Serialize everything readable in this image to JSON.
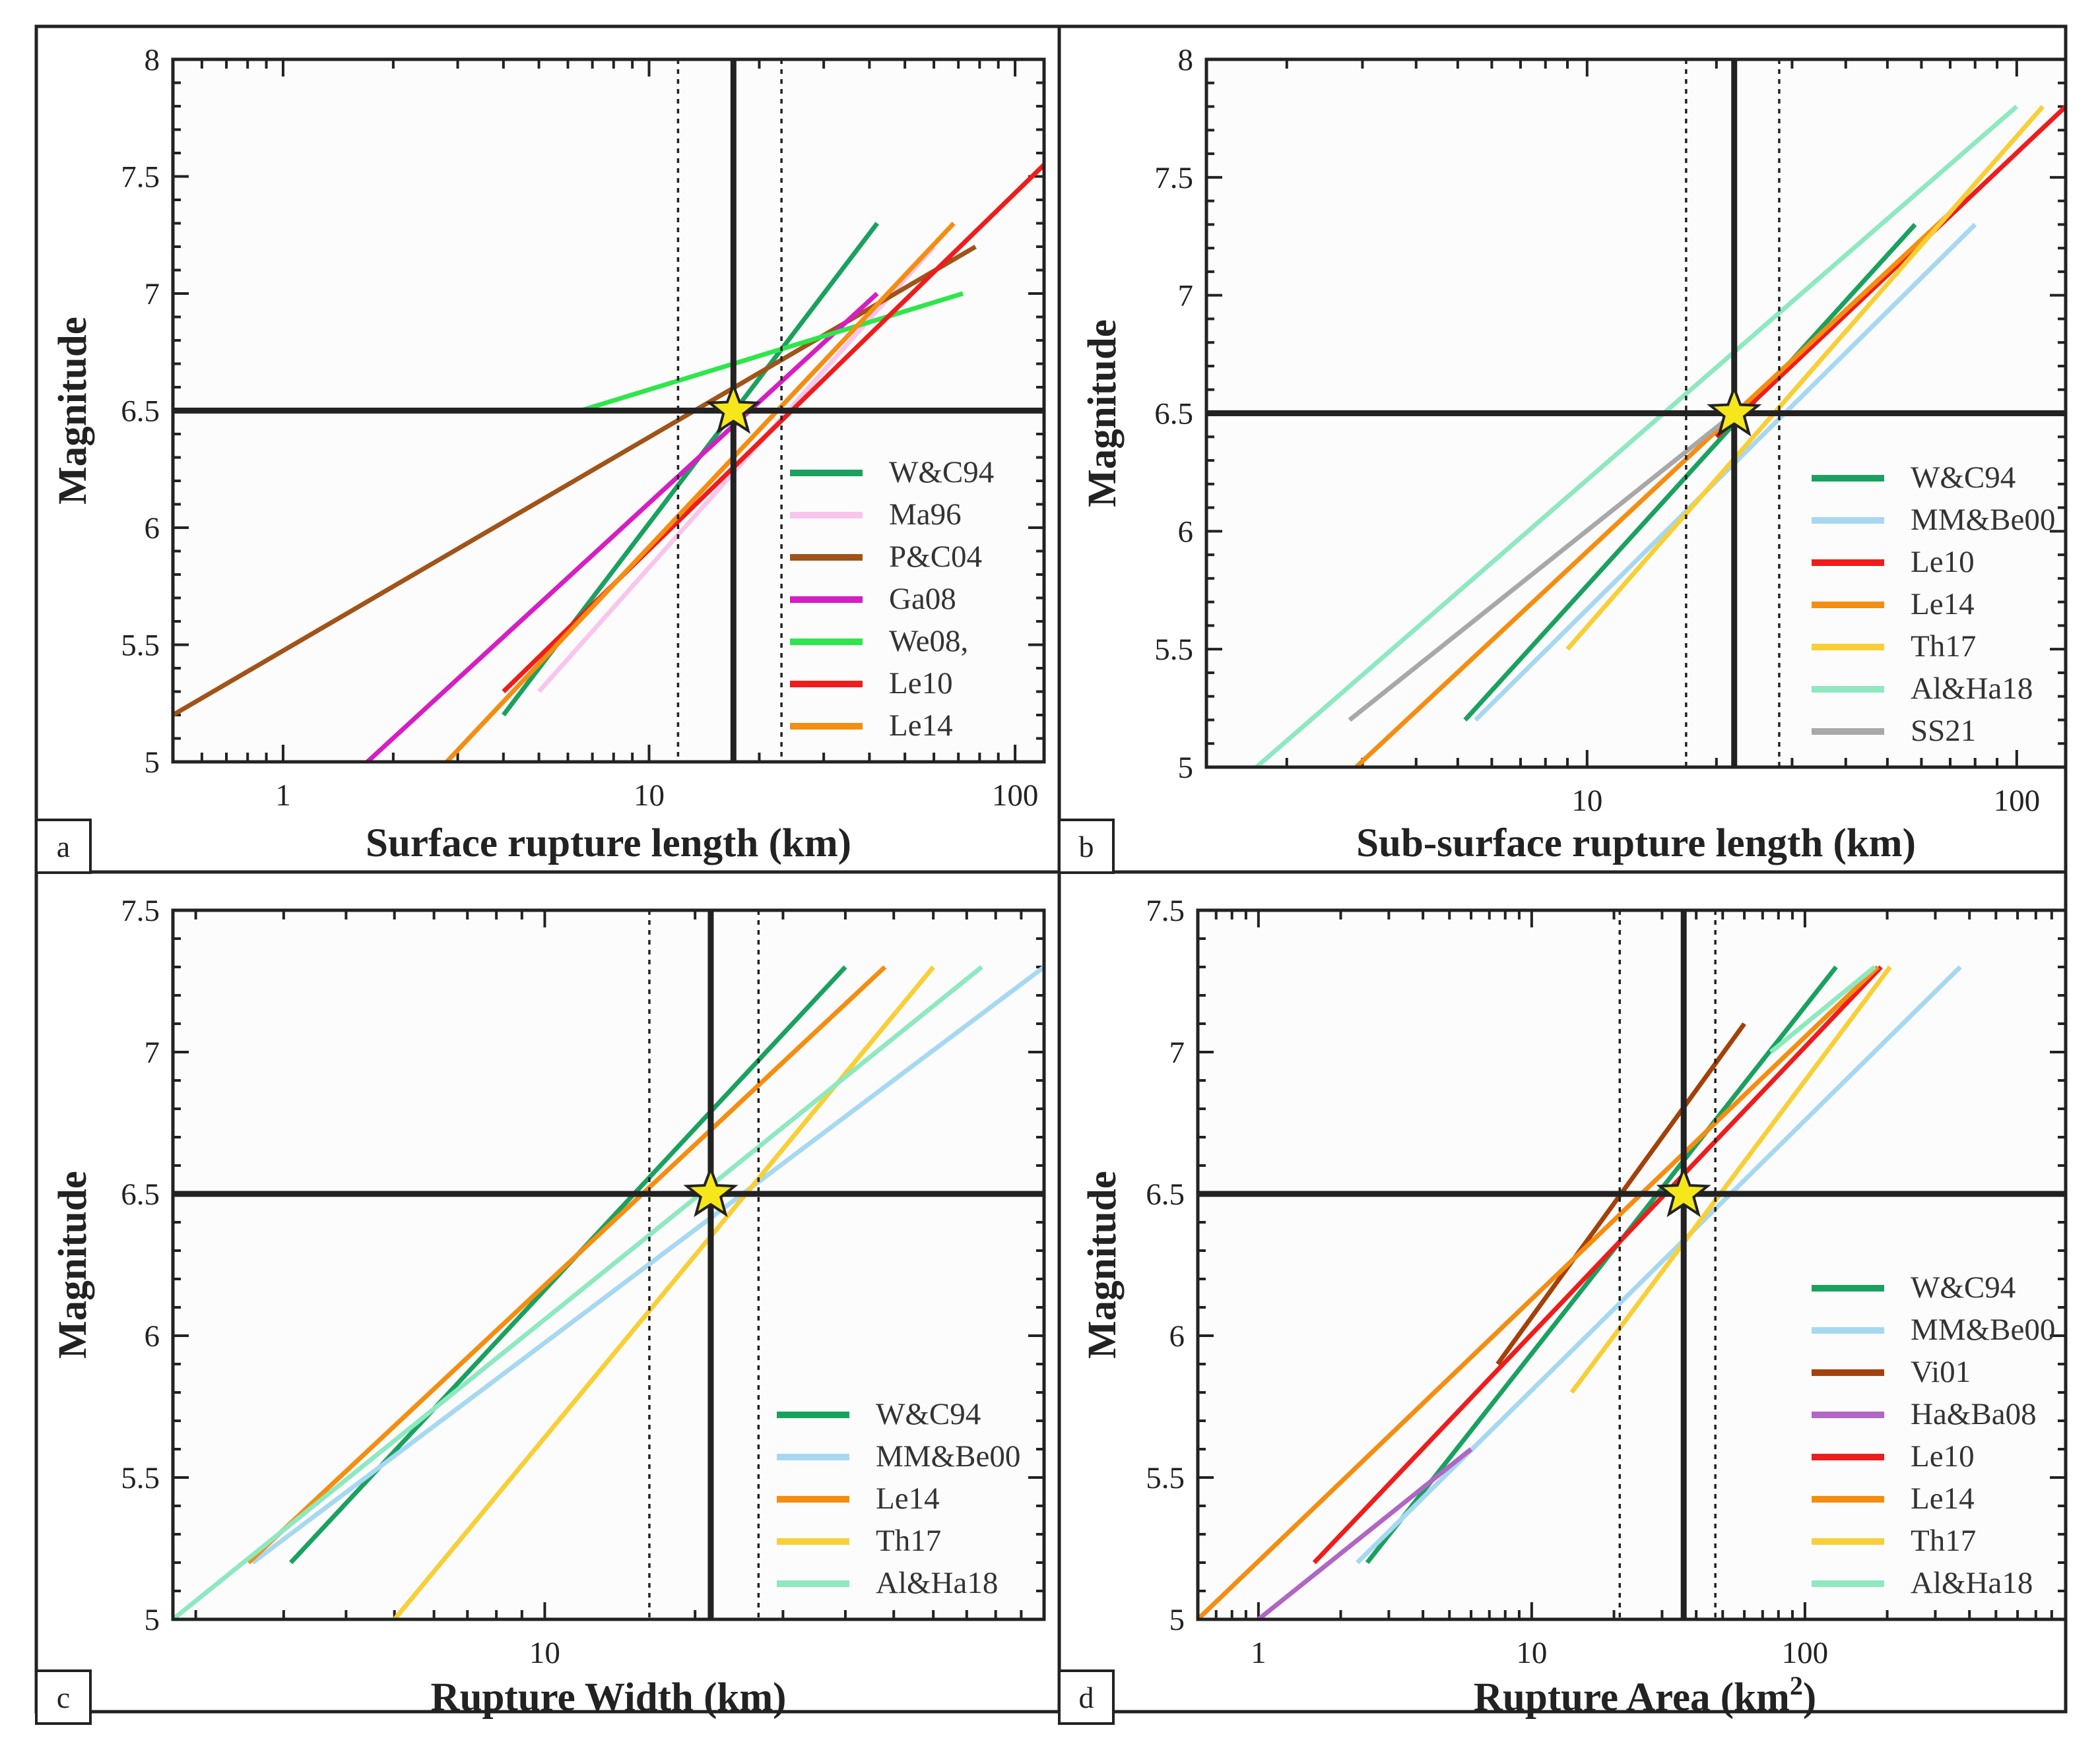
{
  "figure": {
    "star_color": "#f5e71a",
    "line_color": "#222222",
    "ref_lines": {
      "magnitude": 6.5
    }
  },
  "chart_data": [
    {
      "panel": "a",
      "type": "line",
      "xscale": "log",
      "xlabel": "Surface rupture length (km)",
      "ylabel": "Magnitude",
      "xlim": [
        0.5,
        120
      ],
      "ylim": [
        5,
        8
      ],
      "xticks": [
        {
          "v": 1,
          "label": "1"
        },
        {
          "v": 10,
          "label": "10"
        },
        {
          "v": 100,
          "label": "100"
        }
      ],
      "yticks": [
        {
          "v": 5,
          "label": "5"
        },
        {
          "v": 5.5,
          "label": "5.5"
        },
        {
          "v": 6,
          "label": "6"
        },
        {
          "v": 6.5,
          "label": "6.5"
        },
        {
          "v": 7,
          "label": "7"
        },
        {
          "v": 7.5,
          "label": "7.5"
        },
        {
          "v": 8,
          "label": "8"
        }
      ],
      "vline": 17,
      "vline_dotted": [
        12,
        23
      ],
      "star": [
        17,
        6.5
      ],
      "legend_position": "bottom-right",
      "series": [
        {
          "name": "W&C94",
          "color": "#1aa160",
          "x": [
            4,
            42
          ],
          "y": [
            5.2,
            7.3
          ]
        },
        {
          "name": "Ma96",
          "color": "#f8c6ec",
          "x": [
            5,
            60
          ],
          "y": [
            5.3,
            7.2
          ]
        },
        {
          "name": "P&C04",
          "color": "#a05418",
          "x": [
            0.5,
            78
          ],
          "y": [
            5.2,
            7.2
          ]
        },
        {
          "name": "Ga08",
          "color": "#d61ec3",
          "x": [
            1.7,
            42
          ],
          "y": [
            5,
            7
          ]
        },
        {
          "name": "We08,",
          "color": "#2ee64b",
          "x": [
            6.5,
            72
          ],
          "y": [
            6.5,
            7
          ]
        },
        {
          "name": "Le10",
          "color": "#ef1c1c",
          "x": [
            4,
            120
          ],
          "y": [
            5.3,
            7.55
          ]
        },
        {
          "name": "Le14",
          "color": "#f58d10",
          "x": [
            2.8,
            68
          ],
          "y": [
            5,
            7.3
          ]
        }
      ]
    },
    {
      "panel": "b",
      "type": "line",
      "xscale": "log",
      "xlabel": "Sub-surface rupture length (km)",
      "ylabel": "Magnitude",
      "xlim": [
        1.3,
        130
      ],
      "ylim": [
        5,
        8
      ],
      "xticks": [
        {
          "v": 10,
          "label": "10"
        },
        {
          "v": 100,
          "label": "100"
        }
      ],
      "yticks": [
        {
          "v": 5,
          "label": "5"
        },
        {
          "v": 5.5,
          "label": "5.5"
        },
        {
          "v": 6,
          "label": "6"
        },
        {
          "v": 6.5,
          "label": "6.5"
        },
        {
          "v": 7,
          "label": "7"
        },
        {
          "v": 7.5,
          "label": "7.5"
        },
        {
          "v": 8,
          "label": "8"
        }
      ],
      "vline": 22,
      "vline_dotted": [
        17,
        28
      ],
      "star": [
        22,
        6.5
      ],
      "legend_position": "bottom-right",
      "series": [
        {
          "name": "W&C94",
          "color": "#1aa160",
          "x": [
            5.2,
            58
          ],
          "y": [
            5.2,
            7.3
          ]
        },
        {
          "name": "MM&Be00",
          "color": "#a7d8f2",
          "x": [
            5.5,
            80
          ],
          "y": [
            5.2,
            7.3
          ]
        },
        {
          "name": "Le10",
          "color": "#ef1c1c",
          "x": [
            20,
            130
          ],
          "y": [
            6.4,
            7.8
          ]
        },
        {
          "name": "Le14",
          "color": "#f58d10",
          "x": [
            2.9,
            70
          ],
          "y": [
            5,
            7.35
          ]
        },
        {
          "name": "Th17",
          "color": "#f8cf36",
          "x": [
            9,
            115
          ],
          "y": [
            5.5,
            7.8
          ]
        },
        {
          "name": "Al&Ha18",
          "color": "#8ee8c0",
          "x": [
            1.7,
            100
          ],
          "y": [
            5,
            7.8
          ]
        },
        {
          "name": "SS21",
          "color": "#a8a8a8",
          "x": [
            2.8,
            22
          ],
          "y": [
            5.2,
            6.5
          ]
        }
      ]
    },
    {
      "panel": "c",
      "type": "line",
      "xscale": "log",
      "xlabel": "Rupture Width (km)",
      "ylabel": "Magnitude",
      "xlim": [
        1.8,
        100
      ],
      "ylim": [
        5,
        7.5
      ],
      "xticks": [
        {
          "v": 10,
          "label": "10"
        }
      ],
      "yticks": [
        {
          "v": 5,
          "label": "5"
        },
        {
          "v": 5.5,
          "label": "5.5"
        },
        {
          "v": 6,
          "label": "6"
        },
        {
          "v": 6.5,
          "label": "6.5"
        },
        {
          "v": 7,
          "label": "7"
        },
        {
          "v": 7.5,
          "label": "7.5"
        }
      ],
      "vline": 21.5,
      "vline_dotted": [
        16.2,
        26.8
      ],
      "star": [
        21.5,
        6.5
      ],
      "legend_position": "bottom-right",
      "series": [
        {
          "name": "W&C94",
          "color": "#1aa160",
          "x": [
            3.1,
            40
          ],
          "y": [
            5.2,
            7.3
          ]
        },
        {
          "name": "MM&Be00",
          "color": "#a7d8f2",
          "x": [
            2.6,
            100
          ],
          "y": [
            5.2,
            7.3
          ]
        },
        {
          "name": "Le14",
          "color": "#f58d10",
          "x": [
            2.55,
            48
          ],
          "y": [
            5.2,
            7.3
          ]
        },
        {
          "name": "Th17",
          "color": "#f8cf36",
          "x": [
            5,
            60
          ],
          "y": [
            5,
            7.3
          ]
        },
        {
          "name": "Al&Ha18",
          "color": "#8ee8c0",
          "x": [
            1.8,
            75
          ],
          "y": [
            5,
            7.3
          ]
        }
      ]
    },
    {
      "panel": "d",
      "type": "line",
      "xscale": "log",
      "xlabel": "Rupture Area (km",
      "xlabel_sup": "2",
      "xlabel_end": ")",
      "ylabel": "Magnitude",
      "xlim": [
        0.6,
        900
      ],
      "ylim": [
        5,
        7.5
      ],
      "xticks": [
        {
          "v": 1,
          "label": "1"
        },
        {
          "v": 10,
          "label": "10"
        },
        {
          "v": 100,
          "label": "100"
        }
      ],
      "yticks": [
        {
          "v": 5,
          "label": "5"
        },
        {
          "v": 5.5,
          "label": "5.5"
        },
        {
          "v": 6,
          "label": "6"
        },
        {
          "v": 6.5,
          "label": "6.5"
        },
        {
          "v": 7,
          "label": "7"
        },
        {
          "v": 7.5,
          "label": "7.5"
        }
      ],
      "vline": 36,
      "vline_dotted": [
        21,
        47
      ],
      "star": [
        36,
        6.5
      ],
      "legend_position": "bottom-right",
      "series": [
        {
          "name": "W&C94",
          "color": "#1aa160",
          "x": [
            2.5,
            130
          ],
          "y": [
            5.2,
            7.3
          ]
        },
        {
          "name": "MM&Be00",
          "color": "#a7d8f2",
          "x": [
            2.3,
            370
          ],
          "y": [
            5.2,
            7.3
          ]
        },
        {
          "name": "Vi01",
          "color": "#a3410a",
          "x": [
            7.5,
            60
          ],
          "y": [
            5.9,
            7.1
          ]
        },
        {
          "name": "Ha&Ba08",
          "color": "#b067c4",
          "x": [
            1,
            6
          ],
          "y": [
            5,
            5.6
          ]
        },
        {
          "name": "Le10",
          "color": "#ef1c1c",
          "x": [
            1.6,
            190
          ],
          "y": [
            5.2,
            7.3
          ]
        },
        {
          "name": "Le14",
          "color": "#f58d10",
          "x": [
            0.6,
            185
          ],
          "y": [
            5,
            7.3
          ]
        },
        {
          "name": "Th17",
          "color": "#f8cf36",
          "x": [
            14,
            205
          ],
          "y": [
            5.8,
            7.3
          ]
        },
        {
          "name": "Al&Ha18",
          "color": "#8ee8c0",
          "x": [
            75,
            180
          ],
          "y": [
            7,
            7.3
          ]
        }
      ]
    }
  ]
}
